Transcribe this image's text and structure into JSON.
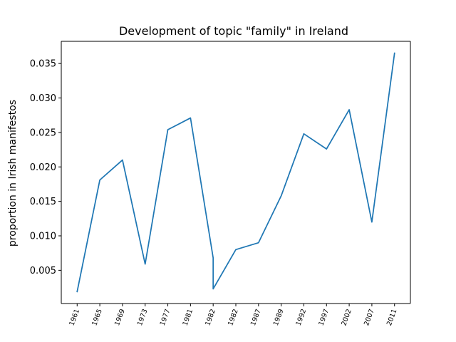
{
  "chart_data": {
    "type": "line",
    "title": "Development of topic \"family\" in Ireland",
    "xlabel": "",
    "ylabel": "proportion in Irish manifestos",
    "categories": [
      "1961",
      "1965",
      "1969",
      "1973",
      "1977",
      "1981",
      "1982",
      "1982",
      "1987",
      "1989",
      "1992",
      "1997",
      "2002",
      "2007",
      "2011"
    ],
    "x": [
      0,
      1,
      2,
      3,
      4,
      5,
      6,
      6,
      7,
      8,
      9,
      10,
      11,
      12,
      13,
      14
    ],
    "x_tick_labels": [
      "1961",
      "1965",
      "1969",
      "1973",
      "1977",
      "1981",
      "1982",
      "1982",
      "1987",
      "1989",
      "1992",
      "1997",
      "2002",
      "2007",
      "2011"
    ],
    "series": [
      {
        "name": "",
        "color": "#1f77b4",
        "values": [
          0.0019,
          0.0181,
          0.021,
          0.0059,
          0.0254,
          0.0271,
          0.0068,
          0.0023,
          0.008,
          0.009,
          0.0158,
          0.0248,
          0.0226,
          0.0283,
          0.012,
          0.0365
        ]
      }
    ],
    "y_ticks": [
      0.005,
      0.01,
      0.015,
      0.02,
      0.025,
      0.03,
      0.035
    ],
    "y_tick_labels": [
      "0.005",
      "0.010",
      "0.015",
      "0.020",
      "0.025",
      "0.030",
      "0.035"
    ],
    "ylim": [
      0.00018,
      0.03822
    ],
    "xlim": [
      -0.7,
      14.7
    ],
    "grid": false,
    "legend": "none"
  }
}
